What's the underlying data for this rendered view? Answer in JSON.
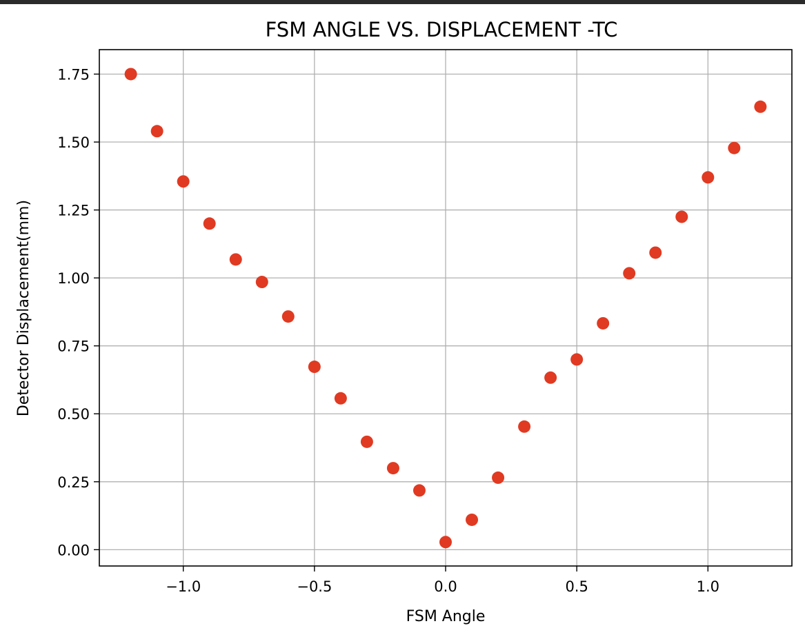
{
  "chart_data": {
    "type": "scatter",
    "title": "FSM ANGLE VS. DISPLACEMENT -TC",
    "xlabel": "FSM Angle",
    "ylabel": "Detector Displacement(mm)",
    "xlim": [
      -1.32,
      1.32
    ],
    "ylim": [
      -0.06,
      1.84
    ],
    "xticks": [
      -1.0,
      -0.5,
      0.0,
      0.5,
      1.0
    ],
    "xtick_labels": [
      "−1.0",
      "−0.5",
      "0.0",
      "0.5",
      "1.0"
    ],
    "yticks": [
      0.0,
      0.25,
      0.5,
      0.75,
      1.0,
      1.25,
      1.5,
      1.75
    ],
    "ytick_labels": [
      "0.00",
      "0.25",
      "0.50",
      "0.75",
      "1.00",
      "1.25",
      "1.50",
      "1.75"
    ],
    "grid": true,
    "marker_color": "#e03a22",
    "series": [
      {
        "x": [
          -1.2,
          -1.1,
          -1.0,
          -0.9,
          -0.8,
          -0.7,
          -0.6,
          -0.5,
          -0.4,
          -0.3,
          -0.2,
          -0.1,
          0.0,
          0.1,
          0.2,
          0.3,
          0.4,
          0.5,
          0.6,
          0.7,
          0.8,
          0.9,
          1.0,
          1.1,
          1.2
        ],
        "y": [
          1.75,
          1.54,
          1.355,
          1.2,
          1.068,
          0.985,
          0.858,
          0.673,
          0.557,
          0.397,
          0.3,
          0.218,
          0.028,
          0.11,
          0.265,
          0.453,
          0.633,
          0.7,
          0.833,
          1.017,
          1.093,
          1.225,
          1.37,
          1.478,
          1.63
        ]
      }
    ]
  }
}
